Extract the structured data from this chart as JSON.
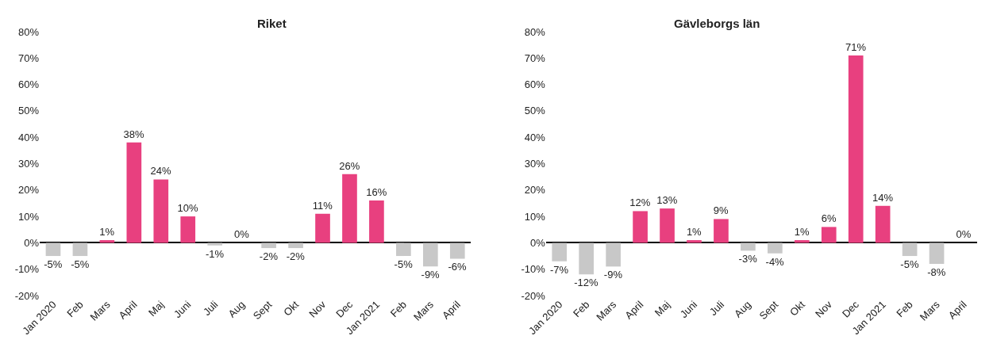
{
  "chart_data": [
    {
      "type": "bar",
      "title": "Riket",
      "categories": [
        "Jan 2020",
        "Feb",
        "Mars",
        "April",
        "Maj",
        "Juni",
        "Juli",
        "Aug",
        "Sept",
        "Okt",
        "Nov",
        "Dec",
        "Jan 2021",
        "Feb",
        "Mars",
        "April"
      ],
      "values": [
        -5,
        -5,
        1,
        38,
        24,
        10,
        -1,
        0,
        -2,
        -2,
        11,
        26,
        16,
        -5,
        -9,
        -6
      ],
      "value_labels": [
        "-5%",
        "-5%",
        "1%",
        "38%",
        "24%",
        "10%",
        "-1%",
        "0%",
        "-2%",
        "-2%",
        "11%",
        "26%",
        "16%",
        "-5%",
        "-9%",
        "-6%"
      ],
      "colors": [
        "#c8c8c8",
        "#c8c8c8",
        "#e8407f",
        "#e8407f",
        "#e8407f",
        "#e8407f",
        "#c8c8c8",
        "#c8c8c8",
        "#c8c8c8",
        "#c8c8c8",
        "#e8407f",
        "#e8407f",
        "#e8407f",
        "#c8c8c8",
        "#c8c8c8",
        "#c8c8c8"
      ],
      "ylim": [
        -20,
        80
      ],
      "yticks": [
        {
          "value": -20,
          "label": "-20%"
        },
        {
          "value": -10,
          "label": "-10%"
        },
        {
          "value": 0,
          "label": "0%"
        },
        {
          "value": 10,
          "label": "10%"
        },
        {
          "value": 20,
          "label": "20%"
        },
        {
          "value": 30,
          "label": "30%"
        },
        {
          "value": 40,
          "label": "40%"
        },
        {
          "value": 50,
          "label": "50%"
        },
        {
          "value": 60,
          "label": "60%"
        },
        {
          "value": 70,
          "label": "70%"
        },
        {
          "value": 80,
          "label": "80%"
        }
      ],
      "legend": false
    },
    {
      "type": "bar",
      "title": "Gävleborgs län",
      "categories": [
        "Jan 2020",
        "Feb",
        "Mars",
        "April",
        "Maj",
        "Juni",
        "Juli",
        "Aug",
        "Sept",
        "Okt",
        "Nov",
        "Dec",
        "Jan 2021",
        "Feb",
        "Mars",
        "April"
      ],
      "values": [
        -7,
        -12,
        -9,
        12,
        13,
        1,
        9,
        -3,
        -4,
        1,
        6,
        71,
        14,
        -5,
        -8,
        0
      ],
      "value_labels": [
        "-7%",
        "-12%",
        "-9%",
        "12%",
        "13%",
        "1%",
        "9%",
        "-3%",
        "-4%",
        "1%",
        "6%",
        "71%",
        "14%",
        "-5%",
        "-8%",
        "0%"
      ],
      "colors": [
        "#c8c8c8",
        "#c8c8c8",
        "#c8c8c8",
        "#e8407f",
        "#e8407f",
        "#e8407f",
        "#e8407f",
        "#c8c8c8",
        "#c8c8c8",
        "#e8407f",
        "#e8407f",
        "#e8407f",
        "#e8407f",
        "#c8c8c8",
        "#c8c8c8",
        "#e8407f"
      ],
      "ylim": [
        -20,
        80
      ],
      "yticks": [
        {
          "value": -20,
          "label": "-20%"
        },
        {
          "value": -10,
          "label": "-10%"
        },
        {
          "value": 0,
          "label": "0%"
        },
        {
          "value": 10,
          "label": "10%"
        },
        {
          "value": 20,
          "label": "20%"
        },
        {
          "value": 30,
          "label": "30%"
        },
        {
          "value": 40,
          "label": "40%"
        },
        {
          "value": 50,
          "label": "50%"
        },
        {
          "value": 60,
          "label": "60%"
        },
        {
          "value": 70,
          "label": "70%"
        },
        {
          "value": 80,
          "label": "80%"
        }
      ],
      "legend": false
    }
  ]
}
